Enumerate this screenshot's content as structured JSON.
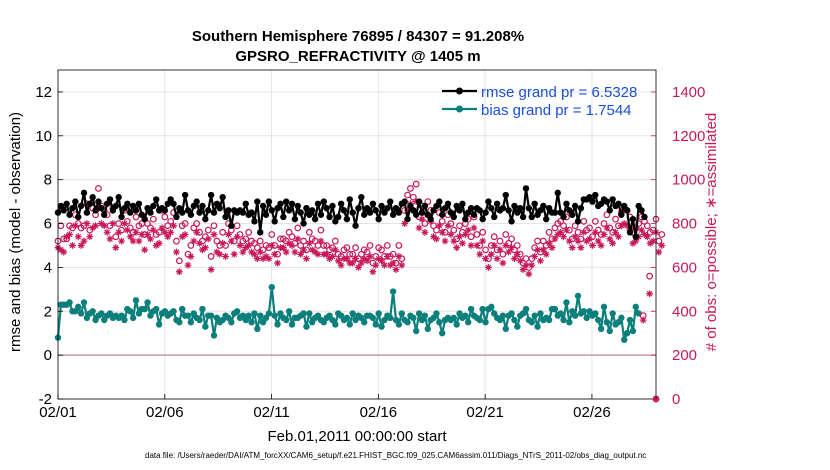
{
  "chart_data": {
    "type": "line",
    "title": "Southern Hemisphere 76895 / 84307 = 91.208%",
    "subtitle": "GPSRO_REFRACTIVITY @ 1405 m",
    "xlabel": "Feb.01,2011 00:00:00 start",
    "ylabel": "rmse and bias (model - observation)",
    "y2label": "# of obs: o=possible; ∗=assimilated",
    "footer": "data file: /Users/raeder/DAI/ATM_forcXX/CAM6_setup/f.e21.FHIST_BGC.f09_025.CAM6assim.011/Diags_NTrS_2011-02/obs_diag_output.nc",
    "xlim": [
      1,
      29
    ],
    "ylim": [
      -2,
      13
    ],
    "y2lim": [
      0,
      1500
    ],
    "xticks": [
      1,
      6,
      11,
      16,
      21,
      26
    ],
    "xtick_labels": [
      "02/01",
      "02/06",
      "02/11",
      "02/16",
      "02/21",
      "02/26"
    ],
    "yticks": [
      -2,
      0,
      2,
      4,
      6,
      8,
      10,
      12
    ],
    "ytick_labels": [
      "-2",
      "0",
      "2",
      "4",
      "6",
      "8",
      "10",
      "12"
    ],
    "y2ticks": [
      0,
      200,
      400,
      600,
      800,
      1000,
      1200,
      1400
    ],
    "y2tick_labels": [
      "0",
      "200",
      "400",
      "600",
      "800",
      "1000",
      "1200",
      "1400"
    ],
    "legend": [
      {
        "label": "rmse grand pr = 6.5328",
        "color": "#000000"
      },
      {
        "label": "bias grand pr = 1.7544",
        "color": "#0a7f7b"
      }
    ],
    "colors": {
      "rmse": "#000000",
      "bias": "#0a7f7b",
      "obs": "#c8185a",
      "zero": "#c0a0a8",
      "grid": "#e3e3e3"
    },
    "series": [
      {
        "name": "rmse",
        "values": [
          6.5,
          6.8,
          6.6,
          6.9,
          6.4,
          6.7,
          7.0,
          6.3,
          6.8,
          7.4,
          6.5,
          6.9,
          7.2,
          6.6,
          7.0,
          6.7,
          6.4,
          6.9,
          7.1,
          6.6,
          6.8,
          7.2,
          6.3,
          6.7,
          6.9,
          6.5,
          6.8,
          6.6,
          6.9,
          6.4,
          6.2,
          6.7,
          6.5,
          6.8,
          7.1,
          6.6,
          6.7,
          6.6,
          6.9,
          7.1,
          6.9,
          6.3,
          6.7,
          6.5,
          7.3,
          6.6,
          6.4,
          6.8,
          7.0,
          6.5,
          6.8,
          6.2,
          6.6,
          7.3,
          6.5,
          6.9,
          6.7,
          7.2,
          6.3,
          6.6,
          5.9,
          6.6,
          6.5,
          6.6,
          6.5,
          6.9,
          6.4,
          6.5,
          6.1,
          7.0,
          5.6,
          6.8,
          6.4,
          7.0,
          6.6,
          6.1,
          6.7,
          6.9,
          6.3,
          7.0,
          6.6,
          6.9,
          6.2,
          6.8,
          6.5,
          6.0,
          6.7,
          6.4,
          6.6,
          6.2,
          6.9,
          6.4,
          7.0,
          6.7,
          6.3,
          6.8,
          6.1,
          6.3,
          6.9,
          6.6,
          6.2,
          7.1,
          6.5,
          5.9,
          6.7,
          7.2,
          6.4,
          6.7,
          6.5,
          6.9,
          6.6,
          6.2,
          6.8,
          6.5,
          6.7,
          7.0,
          6.4,
          6.7,
          6.5,
          6.9,
          7.0,
          6.2,
          6.8,
          6.6,
          6.4,
          7.0,
          6.5,
          6.8,
          6.4,
          6.2,
          6.6,
          6.8,
          7.0,
          6.4,
          6.7,
          6.9,
          6.5,
          6.3,
          6.8,
          6.6,
          6.9,
          6.2,
          6.5,
          6.7,
          6.4,
          6.7,
          6.6,
          6.2,
          6.5,
          7.0,
          6.7,
          6.3,
          6.9,
          6.6,
          6.7,
          7.3,
          6.6,
          6.1,
          6.8,
          6.5,
          6.7,
          6.3,
          7.6,
          6.7,
          6.3,
          6.9,
          6.4,
          6.6,
          6.8,
          6.2,
          6.7,
          6.5,
          6.5,
          7.4,
          6.5,
          6.3,
          6.9,
          6.6,
          6.4,
          6.8,
          6.1,
          6.7,
          7.1,
          7.1,
          7.2,
          7.0,
          7.3,
          6.8,
          6.9,
          7.1,
          7.0,
          6.6,
          7.1,
          6.8,
          6.9,
          6.4,
          6.8,
          6.6,
          5.6,
          6.2,
          5.4,
          6.8,
          6.6,
          6.3
        ]
      },
      {
        "name": "bias",
        "values": [
          0.8,
          2.3,
          2.3,
          2.3,
          2.4,
          2.0,
          2.0,
          2.2,
          1.9,
          2.4,
          1.7,
          1.9,
          2.0,
          1.6,
          1.8,
          1.9,
          1.6,
          1.8,
          1.9,
          1.7,
          1.8,
          1.7,
          1.8,
          1.6,
          2.1,
          2.0,
          1.7,
          2.5,
          1.9,
          2.1,
          2.1,
          2.4,
          1.8,
          2.0,
          2.1,
          1.4,
          1.9,
          2.0,
          1.8,
          1.9,
          2.0,
          1.6,
          1.5,
          2.1,
          1.8,
          1.8,
          1.5,
          1.9,
          1.7,
          1.6,
          2.1,
          1.3,
          1.8,
          1.8,
          0.9,
          1.7,
          1.5,
          1.6,
          1.8,
          1.7,
          1.5,
          1.9,
          2.0,
          1.7,
          1.8,
          1.6,
          1.8,
          1.5,
          1.9,
          1.2,
          1.8,
          1.5,
          1.7,
          1.9,
          3.1,
          1.8,
          1.4,
          1.9,
          1.7,
          1.6,
          2.0,
          1.4,
          1.7,
          1.7,
          1.8,
          1.9,
          1.3,
          1.9,
          1.5,
          1.7,
          1.8,
          1.6,
          1.5,
          1.7,
          1.8,
          1.6,
          1.4,
          1.9,
          1.8,
          1.6,
          1.7,
          1.4,
          1.9,
          1.6,
          1.8,
          1.7,
          1.5,
          1.8,
          1.8,
          1.7,
          1.4,
          1.9,
          1.3,
          1.6,
          1.8,
          1.7,
          2.9,
          1.6,
          1.4,
          1.9,
          1.6,
          1.5,
          1.8,
          1.7,
          1.1,
          1.9,
          1.6,
          1.8,
          1.2,
          1.6,
          1.7,
          1.9,
          1.5,
          1.0,
          1.6,
          1.7,
          1.6,
          1.7,
          1.4,
          1.9,
          1.7,
          1.8,
          1.5,
          2.1,
          1.8,
          1.7,
          1.6,
          2.1,
          1.5,
          2.1,
          2.2,
          1.9,
          1.7,
          1.6,
          1.8,
          1.2,
          1.8,
          1.9,
          1.6,
          1.3,
          1.8,
          1.9,
          2.1,
          1.6,
          1.5,
          1.8,
          1.3,
          1.9,
          1.6,
          1.7,
          1.6,
          2.1,
          2.1,
          1.8,
          1.9,
          1.6,
          2.4,
          1.5,
          2.0,
          1.8,
          2.7,
          1.9,
          2.0,
          1.7,
          2.0,
          1.8,
          1.9,
          1.6,
          1.2,
          2.2,
          1.5,
          1.1,
          1.9,
          1.4,
          1.5,
          1.7,
          0.7,
          1.0,
          1.6,
          1.1,
          2.2,
          1.9
        ]
      },
      {
        "name": "possible",
        "values": [
          720,
          790,
          730,
          730,
          790,
          780,
          840,
          800,
          780,
          790,
          890,
          770,
          870,
          840,
          960,
          880,
          860,
          840,
          790,
          870,
          740,
          800,
          770,
          860,
          810,
          780,
          760,
          830,
          790,
          800,
          750,
          800,
          780,
          820,
          750,
          760,
          860,
          830,
          790,
          810,
          850,
          720,
          630,
          790,
          800,
          660,
          700,
          780,
          800,
          760,
          720,
          740,
          770,
          650,
          790,
          720,
          700,
          760,
          700,
          800,
          770,
          720,
          790,
          750,
          720,
          730,
          760,
          720,
          710,
          690,
          720,
          680,
          700,
          690,
          750,
          700,
          660,
          730,
          730,
          720,
          760,
          740,
          710,
          780,
          700,
          720,
          680,
          760,
          730,
          720,
          700,
          770,
          700,
          700,
          680,
          690,
          720,
          660,
          650,
          680,
          690,
          660,
          660,
          690,
          640,
          660,
          680,
          670,
          700,
          620,
          650,
          690,
          680,
          650,
          700,
          650,
          660,
          620,
          700,
          640,
          860,
          930,
          960,
          920,
          980,
          830,
          880,
          800,
          900,
          860,
          790,
          770,
          850,
          810,
          760,
          840,
          800,
          770,
          730,
          790,
          760,
          800,
          820,
          740,
          830,
          750,
          700,
          760,
          680,
          640,
          700,
          740,
          680,
          720,
          660,
          750,
          710,
          730,
          680,
          700,
          660,
          620,
          640,
          600,
          640,
          690,
          720,
          670,
          720,
          700,
          760,
          730,
          780,
          800,
          810,
          790,
          830,
          770,
          730,
          790,
          760,
          730,
          810,
          770,
          780,
          740,
          810,
          770,
          750,
          800,
          840,
          780,
          760,
          820,
          790,
          850,
          870,
          860,
          830,
          760,
          780,
          800,
          830,
          810,
          790,
          760,
          770,
          820,
          720,
          750
        ]
      },
      {
        "name": "assimilated",
        "values": [
          690,
          680,
          670,
          740,
          750,
          700,
          790,
          740,
          700,
          720,
          800,
          740,
          780,
          790,
          870,
          800,
          790,
          760,
          730,
          800,
          690,
          760,
          720,
          800,
          770,
          740,
          720,
          760,
          720,
          750,
          680,
          750,
          730,
          770,
          700,
          710,
          780,
          760,
          740,
          760,
          790,
          670,
          580,
          740,
          750,
          610,
          650,
          720,
          760,
          710,
          680,
          690,
          730,
          590,
          750,
          670,
          660,
          710,
          650,
          750,
          720,
          660,
          740,
          700,
          670,
          690,
          700,
          670,
          660,
          640,
          670,
          640,
          650,
          640,
          700,
          660,
          620,
          690,
          690,
          670,
          710,
          700,
          670,
          730,
          660,
          680,
          640,
          710,
          680,
          670,
          660,
          720,
          660,
          660,
          640,
          650,
          680,
          630,
          610,
          640,
          640,
          620,
          620,
          640,
          600,
          620,
          640,
          630,
          650,
          580,
          610,
          640,
          630,
          610,
          650,
          610,
          620,
          590,
          650,
          610,
          800,
          860,
          890,
          860,
          900,
          780,
          820,
          760,
          840,
          810,
          740,
          730,
          790,
          760,
          720,
          790,
          750,
          720,
          690,
          740,
          710,
          750,
          770,
          700,
          780,
          700,
          660,
          720,
          640,
          600,
          660,
          700,
          640,
          680,
          620,
          700,
          670,
          690,
          640,
          660,
          630,
          590,
          610,
          570,
          610,
          650,
          680,
          630,
          680,
          660,
          710,
          690,
          730,
          750,
          760,
          740,
          770,
          720,
          690,
          740,
          720,
          690,
          760,
          720,
          730,
          700,
          760,
          720,
          700,
          750,
          780,
          730,
          710,
          760,
          740,
          790,
          800,
          790,
          770,
          710,
          720,
          740,
          770,
          750,
          740,
          710,
          720,
          760,
          670,
          700
        ]
      }
    ],
    "outliers": [
      {
        "x": 28.4,
        "possible": 380,
        "assimilated": 360
      },
      {
        "x": 28.7,
        "possible": 560,
        "assimilated": 480
      },
      {
        "x": 29.0,
        "possible": 0,
        "assimilated": 0
      }
    ]
  }
}
